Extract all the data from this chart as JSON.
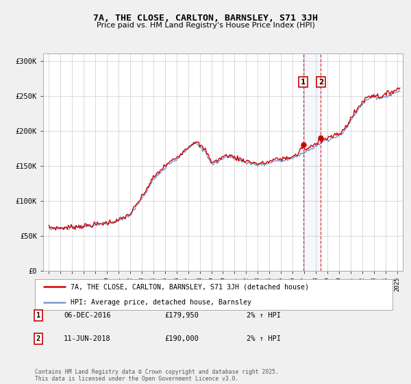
{
  "title": "7A, THE CLOSE, CARLTON, BARNSLEY, S71 3JH",
  "subtitle": "Price paid vs. HM Land Registry's House Price Index (HPI)",
  "legend_line1": "7A, THE CLOSE, CARLTON, BARNSLEY, S71 3JH (detached house)",
  "legend_line2": "HPI: Average price, detached house, Barnsley",
  "footer": "Contains HM Land Registry data © Crown copyright and database right 2025.\nThis data is licensed under the Open Government Licence v3.0.",
  "annotation1_label": "1",
  "annotation1_date": "06-DEC-2016",
  "annotation1_price": "£179,950",
  "annotation1_hpi": "2% ↑ HPI",
  "annotation2_label": "2",
  "annotation2_date": "11-JUN-2018",
  "annotation2_price": "£190,000",
  "annotation2_hpi": "2% ↑ HPI",
  "sale1_x": 2016.92,
  "sale1_y": 179950,
  "sale2_x": 2018.44,
  "sale2_y": 190000,
  "property_color": "#cc0000",
  "hpi_color": "#7799cc",
  "background_color": "#f0f0f0",
  "plot_bg_color": "#ffffff",
  "ylim": [
    0,
    310000
  ],
  "xlim": [
    1994.5,
    2025.5
  ],
  "yticks": [
    0,
    50000,
    100000,
    150000,
    200000,
    250000,
    300000
  ],
  "xticks": [
    1995,
    1996,
    1997,
    1998,
    1999,
    2000,
    2001,
    2002,
    2003,
    2004,
    2005,
    2006,
    2007,
    2008,
    2009,
    2010,
    2011,
    2012,
    2013,
    2014,
    2015,
    2016,
    2017,
    2018,
    2019,
    2020,
    2021,
    2022,
    2023,
    2024,
    2025
  ]
}
